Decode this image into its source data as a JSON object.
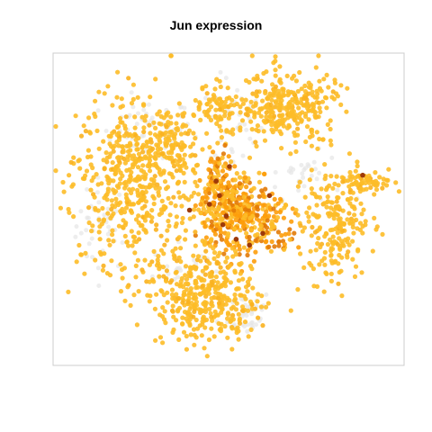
{
  "chart_data": {
    "type": "scatter",
    "title": "Jun expression",
    "xlabel": "",
    "ylabel": "",
    "axes_shown": false,
    "grid": false,
    "legend": "none",
    "point_colors": {
      "background": "#e6e6e6",
      "low": "#fdbd28",
      "mid": "#fd9d0b",
      "high": "#e27a07",
      "max": "#9e3a09"
    },
    "frame_color": "#cccccc",
    "xlim": [
      0,
      100
    ],
    "ylim": [
      0,
      100
    ],
    "clusters": [
      {
        "name": "left",
        "expression": "low",
        "cx": 22,
        "cy": 60,
        "sx": 9,
        "sy": 15,
        "n": 520
      },
      {
        "name": "top-left-arm",
        "expression": "low",
        "cx": 30,
        "cy": 73,
        "sx": 6,
        "sy": 6,
        "n": 90
      },
      {
        "name": "top-center-left",
        "expression": "low",
        "cx": 46,
        "cy": 85,
        "sx": 3,
        "sy": 5,
        "n": 70
      },
      {
        "name": "top-right",
        "expression": "low",
        "cx": 67,
        "cy": 85,
        "sx": 8,
        "sy": 6,
        "n": 310
      },
      {
        "name": "center-core",
        "expression": "mid",
        "cx": 50,
        "cy": 50,
        "sx": 4,
        "sy": 8,
        "n": 260
      },
      {
        "name": "center-arm",
        "expression": "mid",
        "cx": 60,
        "cy": 47,
        "sx": 6,
        "sy": 6,
        "n": 170
      },
      {
        "name": "center-spine",
        "expression": "mid",
        "cx": 46,
        "cy": 58,
        "sx": 2,
        "sy": 7,
        "n": 80
      },
      {
        "name": "bottom",
        "expression": "low",
        "cx": 42,
        "cy": 20,
        "sx": 8,
        "sy": 8,
        "n": 380
      },
      {
        "name": "right",
        "expression": "low",
        "cx": 82,
        "cy": 45,
        "sx": 5,
        "sy": 9,
        "n": 200
      },
      {
        "name": "right-tail",
        "expression": "low",
        "cx": 90,
        "cy": 60,
        "sx": 4,
        "sy": 2,
        "n": 70
      }
    ],
    "background_clusters": [
      {
        "cx": 12,
        "cy": 45,
        "sx": 4,
        "sy": 8,
        "n": 40
      },
      {
        "cx": 25,
        "cy": 78,
        "sx": 7,
        "sy": 5,
        "n": 50
      },
      {
        "cx": 52,
        "cy": 80,
        "sx": 4,
        "sy": 8,
        "n": 35
      },
      {
        "cx": 55,
        "cy": 15,
        "sx": 4,
        "sy": 4,
        "n": 40
      },
      {
        "cx": 72,
        "cy": 62,
        "sx": 6,
        "sy": 4,
        "n": 35
      },
      {
        "cx": 35,
        "cy": 30,
        "sx": 4,
        "sy": 4,
        "n": 25
      }
    ],
    "high_points": [
      {
        "x": 47,
        "y": 55
      },
      {
        "x": 48,
        "y": 45
      },
      {
        "x": 49,
        "y": 48
      },
      {
        "x": 52,
        "y": 40
      },
      {
        "x": 56,
        "y": 38
      },
      {
        "x": 46,
        "y": 60
      },
      {
        "x": 62,
        "y": 55
      },
      {
        "x": 60,
        "y": 42
      },
      {
        "x": 44,
        "y": 52
      },
      {
        "x": 90,
        "y": 62
      },
      {
        "x": 50,
        "y": 65
      },
      {
        "x": 38,
        "y": 50
      }
    ]
  }
}
